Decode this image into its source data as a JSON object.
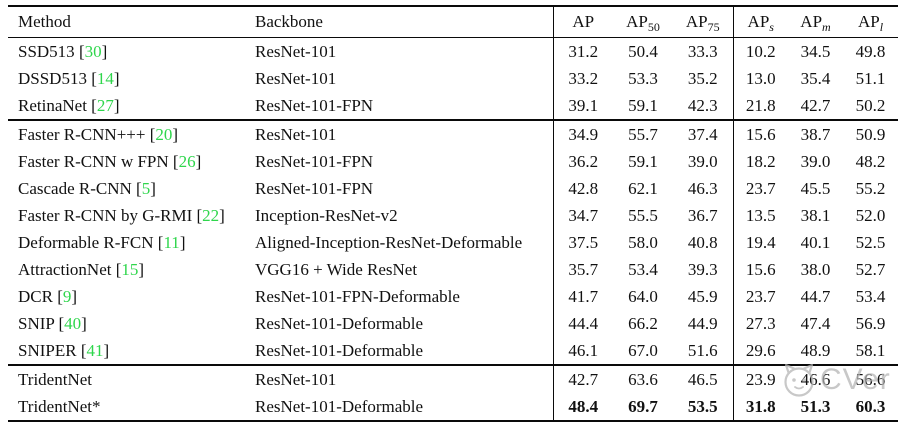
{
  "colors": {
    "citation_green": "#2fd64c",
    "watermark_gray": "#b3b3b3",
    "rule_black": "#0a0a0a"
  },
  "table": {
    "headers": [
      {
        "base": "Method",
        "sub": ""
      },
      {
        "base": "Backbone",
        "sub": ""
      },
      {
        "base": "AP",
        "sub": ""
      },
      {
        "base": "AP",
        "sub": "50"
      },
      {
        "base": "AP",
        "sub": "75"
      },
      {
        "base": "AP",
        "sub": "s"
      },
      {
        "base": "AP",
        "sub": "m"
      },
      {
        "base": "AP",
        "sub": "l"
      }
    ],
    "rows": [
      {
        "section": 1,
        "method": "SSD513",
        "cite": "30",
        "backbone": "ResNet-101",
        "values": [
          "31.2",
          "50.4",
          "33.3",
          "10.2",
          "34.5",
          "49.8"
        ],
        "bold": false
      },
      {
        "section": 1,
        "method": "DSSD513",
        "cite": "14",
        "backbone": "ResNet-101",
        "values": [
          "33.2",
          "53.3",
          "35.2",
          "13.0",
          "35.4",
          "51.1"
        ],
        "bold": false
      },
      {
        "section": 1,
        "method": "RetinaNet",
        "cite": "27",
        "backbone": "ResNet-101-FPN",
        "values": [
          "39.1",
          "59.1",
          "42.3",
          "21.8",
          "42.7",
          "50.2"
        ],
        "bold": false
      },
      {
        "section": 2,
        "method": "Faster R-CNN+++",
        "cite": "20",
        "backbone": "ResNet-101",
        "values": [
          "34.9",
          "55.7",
          "37.4",
          "15.6",
          "38.7",
          "50.9"
        ],
        "bold": false
      },
      {
        "section": 2,
        "method": "Faster R-CNN w FPN",
        "cite": "26",
        "backbone": "ResNet-101-FPN",
        "values": [
          "36.2",
          "59.1",
          "39.0",
          "18.2",
          "39.0",
          "48.2"
        ],
        "bold": false
      },
      {
        "section": 2,
        "method": "Cascade R-CNN",
        "cite": "5",
        "backbone": "ResNet-101-FPN",
        "values": [
          "42.8",
          "62.1",
          "46.3",
          "23.7",
          "45.5",
          "55.2"
        ],
        "bold": false
      },
      {
        "section": 2,
        "method": "Faster R-CNN by G-RMI",
        "cite": "22",
        "backbone": "Inception-ResNet-v2",
        "values": [
          "34.7",
          "55.5",
          "36.7",
          "13.5",
          "38.1",
          "52.0"
        ],
        "bold": false
      },
      {
        "section": 2,
        "method": "Deformable R-FCN",
        "cite": "11",
        "backbone": "Aligned-Inception-ResNet-Deformable",
        "values": [
          "37.5",
          "58.0",
          "40.8",
          "19.4",
          "40.1",
          "52.5"
        ],
        "bold": false
      },
      {
        "section": 2,
        "method": "AttractionNet",
        "cite": "15",
        "backbone": "VGG16 + Wide ResNet",
        "values": [
          "35.7",
          "53.4",
          "39.3",
          "15.6",
          "38.0",
          "52.7"
        ],
        "bold": false
      },
      {
        "section": 2,
        "method": "DCR",
        "cite": "9",
        "backbone": "ResNet-101-FPN-Deformable",
        "values": [
          "41.7",
          "64.0",
          "45.9",
          "23.7",
          "44.7",
          "53.4"
        ],
        "bold": false
      },
      {
        "section": 2,
        "method": "SNIP",
        "cite": "40",
        "backbone": "ResNet-101-Deformable",
        "values": [
          "44.4",
          "66.2",
          "44.9",
          "27.3",
          "47.4",
          "56.9"
        ],
        "bold": false
      },
      {
        "section": 2,
        "method": "SNIPER",
        "cite": "41",
        "backbone": "ResNet-101-Deformable",
        "values": [
          "46.1",
          "67.0",
          "51.6",
          "29.6",
          "48.9",
          "58.1"
        ],
        "bold": false
      },
      {
        "section": 3,
        "method": "TridentNet",
        "cite": "",
        "backbone": "ResNet-101",
        "values": [
          "42.7",
          "63.6",
          "46.5",
          "23.9",
          "46.6",
          "56.6"
        ],
        "bold": false
      },
      {
        "section": 3,
        "method": "TridentNet*",
        "cite": "",
        "backbone": "ResNet-101-Deformable",
        "values": [
          "48.4",
          "69.7",
          "53.5",
          "31.8",
          "51.3",
          "60.3"
        ],
        "bold": true
      }
    ]
  },
  "watermark": {
    "text": "CVer"
  }
}
